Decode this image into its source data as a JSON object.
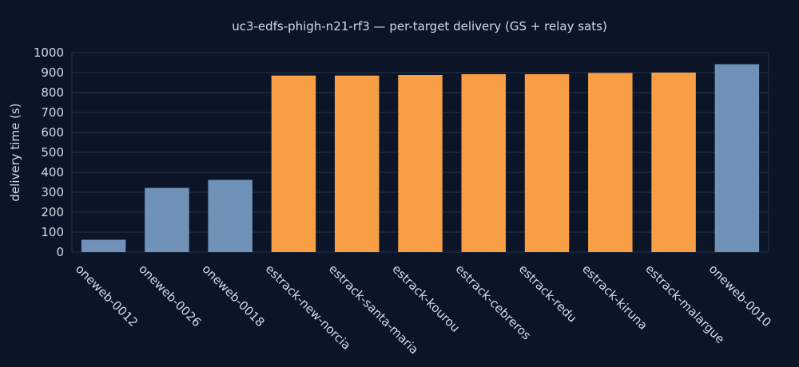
{
  "chart_data": {
    "type": "bar",
    "title": "uc3-edfs-phigh-n21-rf3 — per-target delivery (GS + relay sats)",
    "xlabel": "",
    "ylabel": "delivery time (s)",
    "ylim": [
      0,
      1000
    ],
    "yticks": [
      0,
      100,
      200,
      300,
      400,
      500,
      600,
      700,
      800,
      900,
      1000
    ],
    "grid": true,
    "categories": [
      "oneweb-0012",
      "oneweb-0026",
      "oneweb-0018",
      "estrack-new-norcia",
      "estrack-santa-maria",
      "estrack-kourou",
      "estrack-cebreros",
      "estrack-redu",
      "estrack-kiruna",
      "estrack-malargue",
      "oneweb-0010"
    ],
    "values": [
      62,
      322,
      362,
      885,
      885,
      888,
      892,
      892,
      898,
      900,
      942
    ],
    "kinds": [
      "sat",
      "sat",
      "sat",
      "gs",
      "gs",
      "gs",
      "gs",
      "gs",
      "gs",
      "gs",
      "sat"
    ],
    "colors": {
      "sat": "#7092b9",
      "gs": "#f89f46"
    }
  }
}
